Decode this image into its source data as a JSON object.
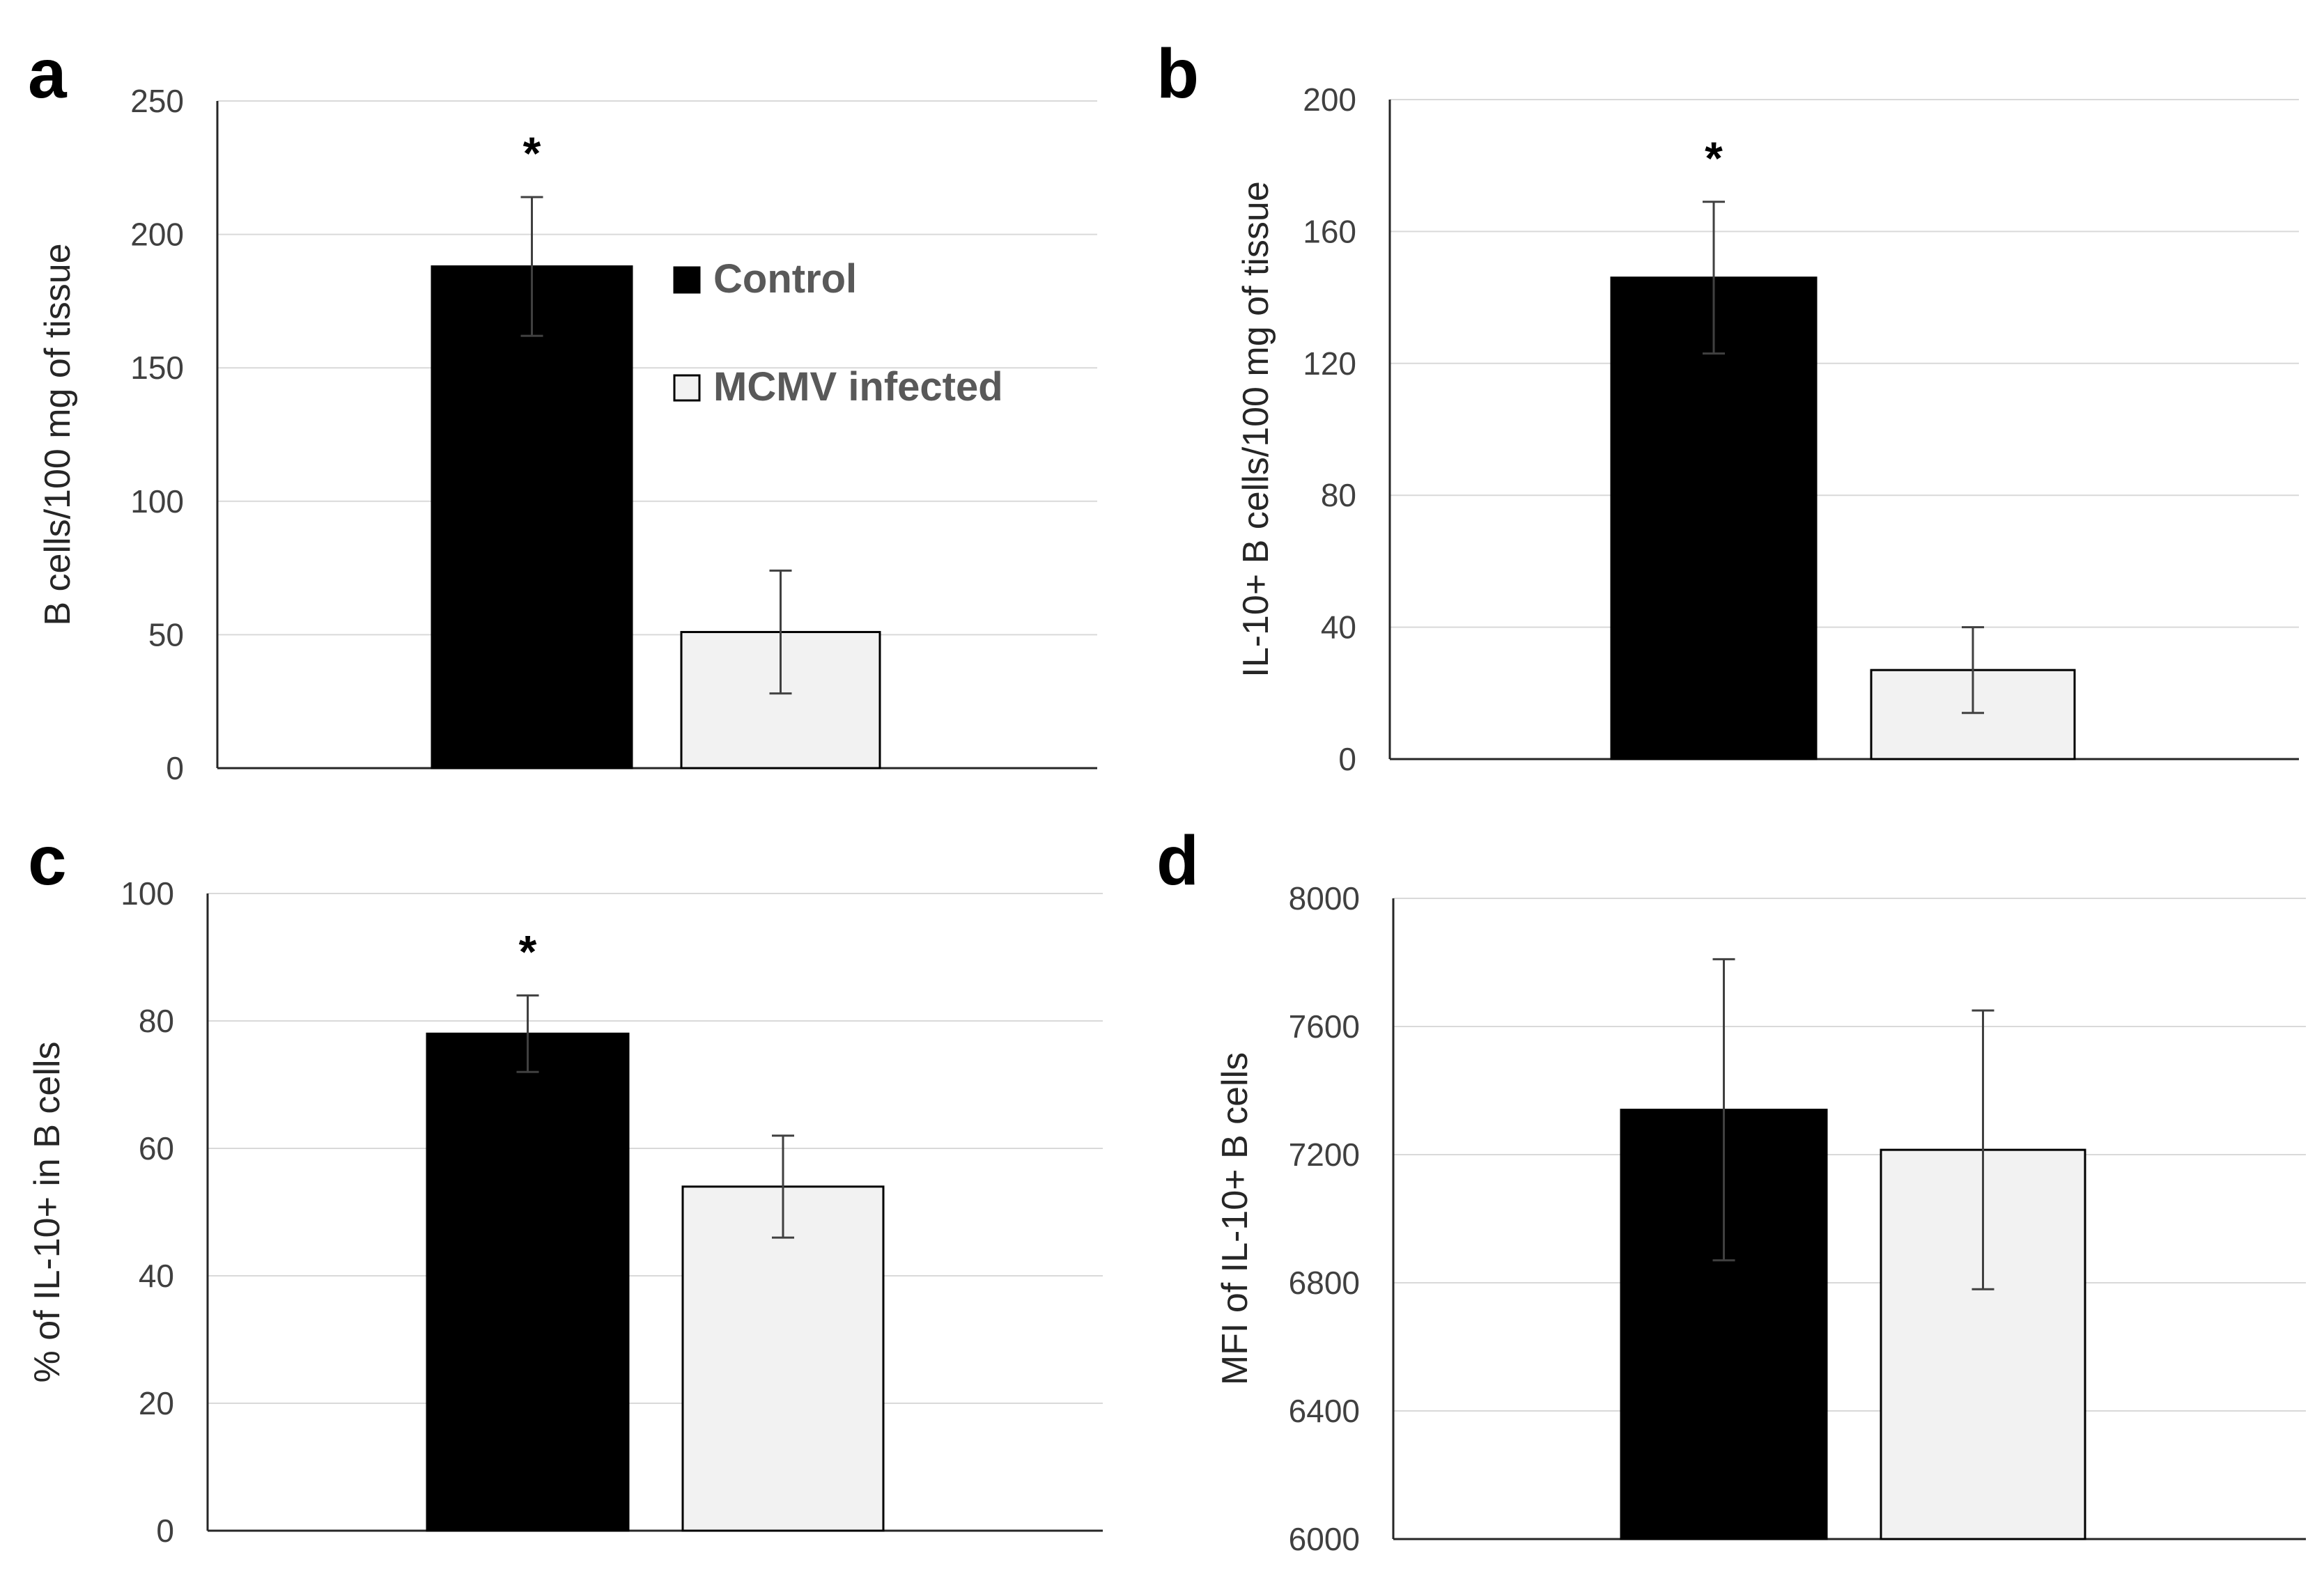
{
  "colors": {
    "control": "#000000",
    "infected": "#f2f2f2",
    "grid": "#d9d9d9",
    "axis": "#262626",
    "error_bar": "#404040"
  },
  "legend": {
    "placement": "top-right of panel a",
    "items": [
      {
        "label": "Control",
        "color": "#000000"
      },
      {
        "label": "MCMV infected",
        "color": "#f2f2f2"
      }
    ]
  },
  "chart_data": [
    {
      "type": "bar",
      "panel": "a",
      "ylabel": "B cells/100 mg of tissue",
      "ylim": [
        0,
        250
      ],
      "yticks": [
        0,
        50,
        100,
        150,
        200,
        250
      ],
      "tick_labels": [
        "0",
        "50",
        "100",
        "150",
        "200",
        "250"
      ],
      "grid": true,
      "series": [
        {
          "name": "Control",
          "value": 188,
          "error": 26,
          "marker": "*"
        },
        {
          "name": "MCMV infected",
          "value": 51,
          "error": 23,
          "marker": ""
        }
      ]
    },
    {
      "type": "bar",
      "panel": "b",
      "ylabel": "IL-10+ B cells/100 mg of tissue",
      "ylim": [
        0,
        200
      ],
      "yticks": [
        0,
        40,
        80,
        120,
        160,
        200
      ],
      "tick_labels": [
        "0",
        "40",
        "80",
        "120",
        "160",
        "200"
      ],
      "grid": true,
      "series": [
        {
          "name": "Control",
          "value": 146,
          "error": 23,
          "marker": "*"
        },
        {
          "name": "MCMV infected",
          "value": 27,
          "error": 13,
          "marker": ""
        }
      ]
    },
    {
      "type": "bar",
      "panel": "c",
      "ylabel": "% of IL-10+ in B cells",
      "ylim": [
        0,
        100
      ],
      "yticks": [
        0,
        20,
        40,
        60,
        80,
        100
      ],
      "tick_labels": [
        "0",
        "20",
        "40",
        "60",
        "80",
        "100"
      ],
      "grid": true,
      "series": [
        {
          "name": "Control",
          "value": 78,
          "error": 6,
          "marker": "*"
        },
        {
          "name": "MCMV infected",
          "value": 54,
          "error": 8,
          "marker": ""
        }
      ]
    },
    {
      "type": "bar",
      "panel": "d",
      "ylabel": "MFI of IL-10+ B cells",
      "ylim": [
        6000,
        8000
      ],
      "yticks": [
        6000,
        6400,
        6800,
        7200,
        7600,
        8000
      ],
      "tick_labels": [
        "6000",
        "6400",
        "6800",
        "7200",
        "7600",
        "8000"
      ],
      "grid": true,
      "series": [
        {
          "name": "Control",
          "value": 7340,
          "error": 470,
          "marker": ""
        },
        {
          "name": "MCMV infected",
          "value": 7215,
          "error": 435,
          "marker": ""
        }
      ]
    }
  ]
}
